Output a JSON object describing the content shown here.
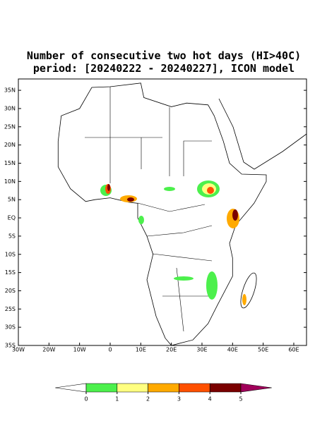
{
  "title": "Number of consecutive two hot days (HI>40C)",
  "subtitle": "period: [20240222 - 20240227], ICON model",
  "lat_ticks": [
    {
      "value": 35,
      "label": "35N"
    },
    {
      "value": 30,
      "label": "30N"
    },
    {
      "value": 25,
      "label": "25N"
    },
    {
      "value": 20,
      "label": "20N"
    },
    {
      "value": 15,
      "label": "15N"
    },
    {
      "value": 10,
      "label": "10N"
    },
    {
      "value": 5,
      "label": "5N"
    },
    {
      "value": 0,
      "label": "EQ"
    },
    {
      "value": -5,
      "label": "5S"
    },
    {
      "value": -10,
      "label": "10S"
    },
    {
      "value": -15,
      "label": "15S"
    },
    {
      "value": -20,
      "label": "20S"
    },
    {
      "value": -25,
      "label": "25S"
    },
    {
      "value": -30,
      "label": "30S"
    },
    {
      "value": -35,
      "label": "35S"
    }
  ],
  "lon_ticks": [
    {
      "value": -30,
      "label": "30W"
    },
    {
      "value": -20,
      "label": "20W"
    },
    {
      "value": -10,
      "label": "10W"
    },
    0,
    {
      "value": 10,
      "label": "10E"
    },
    {
      "value": 20,
      "label": "20E"
    },
    {
      "value": 30,
      "label": "30E"
    },
    {
      "value": 40,
      "label": "40E"
    },
    {
      "value": 50,
      "label": "50E"
    },
    {
      "value": 60,
      "label": "60E"
    }
  ],
  "colorbar": {
    "ticks": [
      0,
      1,
      2,
      3,
      4,
      5
    ],
    "colors": [
      "#ffffff",
      "#4cf04c",
      "#ffff80",
      "#ffaa00",
      "#ff5000",
      "#7a0000",
      "#a0005a"
    ]
  }
}
